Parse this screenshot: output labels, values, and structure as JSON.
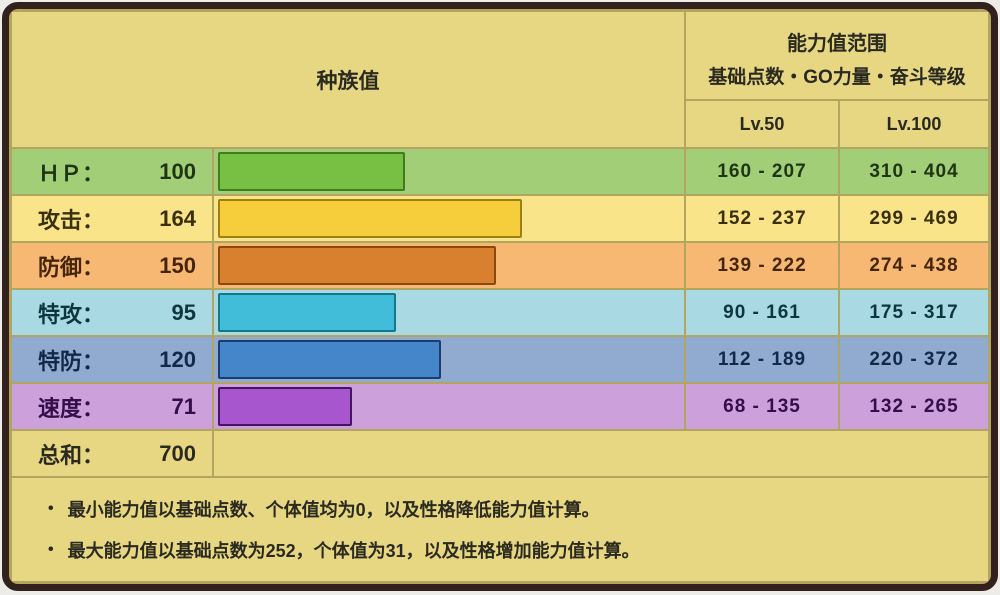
{
  "colors": {
    "frame_border": "#32211C",
    "khaki": "#E7D682",
    "divider": "#B1A55F",
    "page_bg": "#EDECE8"
  },
  "header": {
    "base_stats_title": "种族值",
    "range_title": "能力值范围",
    "range_subtitle": "基础点数・GO力量・奋斗等级",
    "lv50_label": "Lv.50",
    "lv100_label": "Lv.100"
  },
  "stats": {
    "max_stat": 255,
    "rows": [
      {
        "key": "hp",
        "label": "ＨＰ：",
        "value": "100",
        "num": 100,
        "lv50": "160 - 207",
        "lv100": "310 - 404",
        "row_bg": "#A2CE77",
        "bar_fill": "#77C043",
        "bar_border": "#3F7D1F",
        "text": "#1E3514"
      },
      {
        "key": "attack",
        "label": "攻击：",
        "value": "164",
        "num": 164,
        "lv50": "152 - 237",
        "lv100": "299 - 469",
        "row_bg": "#F9E489",
        "bar_fill": "#F6CE3C",
        "bar_border": "#9C8012",
        "text": "#3A300E"
      },
      {
        "key": "defense",
        "label": "防御：",
        "value": "150",
        "num": 150,
        "lv50": "139 - 222",
        "lv100": "274 - 438",
        "row_bg": "#F7B873",
        "bar_fill": "#D9802E",
        "bar_border": "#8A4912",
        "text": "#46260A"
      },
      {
        "key": "sp_attack",
        "label": "特攻：",
        "value": "95",
        "num": 95,
        "lv50": "90 - 161",
        "lv100": "175 - 317",
        "row_bg": "#A9D9E2",
        "bar_fill": "#41BCD9",
        "bar_border": "#15778A",
        "text": "#0E3641"
      },
      {
        "key": "sp_defense",
        "label": "特防：",
        "value": "120",
        "num": 120,
        "lv50": "112 - 189",
        "lv100": "220 - 372",
        "row_bg": "#91AACF",
        "bar_fill": "#4586CB",
        "bar_border": "#183E70",
        "text": "#13294A"
      },
      {
        "key": "speed",
        "label": "速度：",
        "value": "71",
        "num": 71,
        "lv50": "68 - 135",
        "lv100": "132 - 265",
        "row_bg": "#CCA0DA",
        "bar_fill": "#A756CE",
        "bar_border": "#451465",
        "text": "#340E4A"
      }
    ],
    "total": {
      "label": "总和：",
      "value": "700"
    }
  },
  "notes": [
    "最小能力值以基础点数、个体值均为0，以及性格降低能力值计算。",
    "最大能力值以基础点数为252，个体值为31，以及性格增加能力值计算。"
  ],
  "bullet_glyph": "●",
  "chart_data": {
    "type": "bar",
    "orientation": "horizontal",
    "title": "种族值",
    "categories": [
      "HP",
      "攻击",
      "防御",
      "特攻",
      "特防",
      "速度"
    ],
    "values": [
      100,
      164,
      150,
      95,
      120,
      71
    ],
    "total": 700,
    "xlim": [
      0,
      255
    ],
    "grid": false,
    "legend": "none",
    "series": [
      {
        "name": "种族值",
        "values": [
          100,
          164,
          150,
          95,
          120,
          71
        ]
      },
      {
        "name": "Lv.50 最小",
        "values": [
          160,
          152,
          139,
          90,
          112,
          68
        ]
      },
      {
        "name": "Lv.50 最大",
        "values": [
          207,
          237,
          222,
          161,
          189,
          135
        ]
      },
      {
        "name": "Lv.100 最小",
        "values": [
          310,
          299,
          274,
          175,
          220,
          132
        ]
      },
      {
        "name": "Lv.100 最大",
        "values": [
          404,
          469,
          438,
          317,
          372,
          265
        ]
      }
    ],
    "bar_colors": [
      "#77C043",
      "#F6CE3C",
      "#D9802E",
      "#41BCD9",
      "#4586CB",
      "#A756CE"
    ]
  }
}
